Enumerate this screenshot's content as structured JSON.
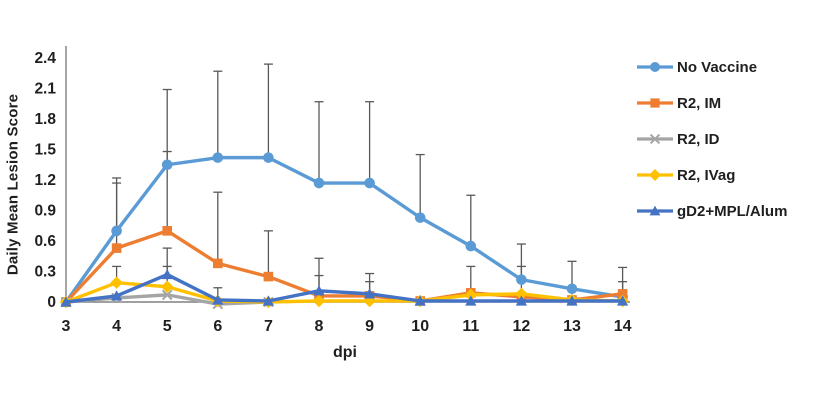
{
  "chart_data": {
    "type": "line",
    "title": "",
    "xlabel": "dpi",
    "ylabel": "Daily Mean Lesion Score",
    "x": [
      3,
      4,
      5,
      6,
      7,
      8,
      9,
      10,
      11,
      12,
      13,
      14
    ],
    "ylim": [
      0,
      2.4
    ],
    "ytick_step": 0.3,
    "yticks": [
      "0",
      "0.3",
      "0.6",
      "0.9",
      "1.2",
      "1.5",
      "1.8",
      "2.1",
      "2.4"
    ],
    "grid": false,
    "legend_position": "right",
    "axis_color": "#808080",
    "error_bar_color": "#595959",
    "text_color": "#1f1f1f",
    "series": [
      {
        "name": "No Vaccine",
        "color": "#5B9BD5",
        "marker": "circle",
        "values": [
          0,
          0.7,
          1.35,
          1.42,
          1.42,
          1.17,
          1.17,
          0.83,
          0.55,
          0.22,
          0.13,
          0.05
        ],
        "err_up": [
          0,
          0.52,
          0.74,
          0.85,
          0.92,
          0.8,
          0.8,
          0.62,
          0.5,
          0.35,
          0.27,
          0.15
        ]
      },
      {
        "name": "R2, IM",
        "color": "#ED7D31",
        "marker": "square",
        "values": [
          0,
          0.53,
          0.7,
          0.38,
          0.25,
          0.06,
          0.06,
          0.01,
          0.09,
          0.05,
          0.02,
          0.08
        ],
        "err_up": [
          0,
          0.64,
          0.78,
          0.7,
          0.45,
          0.2,
          0.14,
          0,
          0.26,
          0,
          0,
          0.26
        ]
      },
      {
        "name": "R2, ID",
        "color": "#A5A5A5",
        "marker": "x",
        "values": [
          0,
          0.04,
          0.07,
          -0.02,
          0,
          null,
          null,
          null,
          null,
          null,
          null,
          null
        ],
        "err_up": [
          0,
          0,
          0,
          0,
          0,
          0,
          0,
          0,
          0,
          0,
          0,
          0
        ]
      },
      {
        "name": "R2, IVag",
        "color": "#FFC000",
        "marker": "diamond",
        "values": [
          0,
          0.19,
          0.15,
          0.01,
          0,
          0.01,
          0.01,
          0.01,
          0.07,
          0.08,
          0.02,
          0.01
        ],
        "err_up": [
          0,
          0.16,
          0.2,
          0,
          0,
          0,
          0,
          0,
          0,
          0.27,
          0,
          0
        ]
      },
      {
        "name": "gD2+MPL/Alum",
        "color": "#4472C4",
        "marker": "triangle",
        "values": [
          0,
          0.06,
          0.27,
          0.02,
          0.01,
          0.11,
          0.08,
          0.01,
          0.01,
          0.01,
          0.01,
          0.01
        ],
        "err_up": [
          0,
          0,
          0.26,
          0.12,
          0,
          0.32,
          0.2,
          0,
          0,
          0,
          0,
          0
        ]
      }
    ]
  }
}
